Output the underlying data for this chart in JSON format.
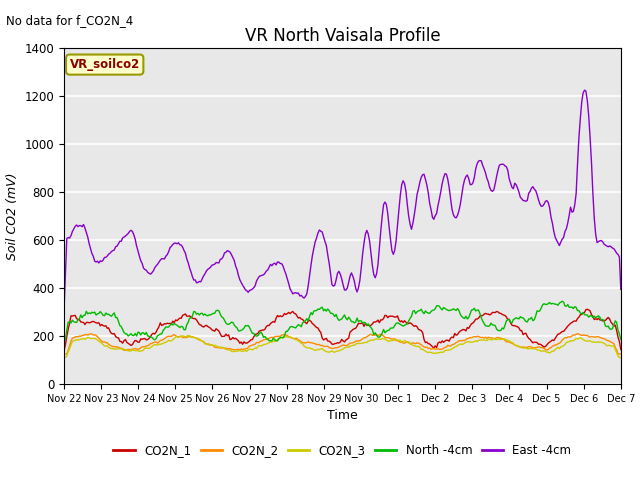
{
  "title": "VR North Vaisala Profile",
  "subtitle": "No data for f_CO2N_4",
  "ylabel": "Soil CO2 (mV)",
  "xlabel": "Time",
  "legend_label": "VR_soilco2",
  "ylim": [
    0,
    1400
  ],
  "bg_color": "#e8e8e8",
  "series": {
    "CO2N_1": {
      "color": "#cc0000",
      "lw": 1.0
    },
    "CO2N_2": {
      "color": "#ff8c00",
      "lw": 1.0
    },
    "CO2N_3": {
      "color": "#cccc00",
      "lw": 1.0
    },
    "North_4cm": {
      "color": "#00bb00",
      "lw": 1.0
    },
    "East_4cm": {
      "color": "#8800cc",
      "lw": 1.0
    }
  },
  "tick_labels": [
    "Nov 22",
    "Nov 23",
    "Nov 24",
    "Nov 25",
    "Nov 26",
    "Nov 27",
    "Nov 28",
    "Nov 29",
    "Nov 30",
    "Dec 1",
    "Dec 2",
    "Dec 3",
    "Dec 4",
    "Dec 5",
    "Dec 6",
    "Dec 7"
  ],
  "yticks": [
    0,
    200,
    400,
    600,
    800,
    1000,
    1200,
    1400
  ]
}
